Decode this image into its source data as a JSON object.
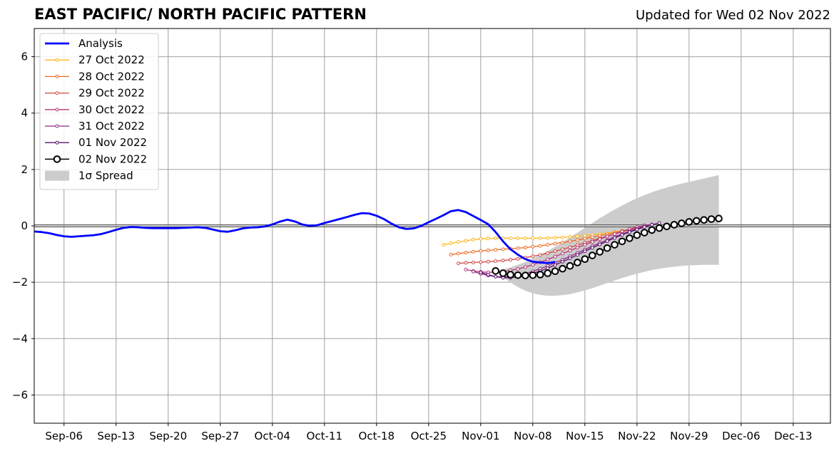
{
  "chart_data": {
    "type": "line",
    "title": "EAST PACIFIC/ NORTH PACIFIC PATTERN",
    "subtitle": "Updated for Wed 02 Nov 2022",
    "xlabel": "",
    "ylabel": "",
    "xlim": [
      "2022-09-02",
      "2022-12-18"
    ],
    "ylim": [
      -7,
      7
    ],
    "yticks": [
      -6,
      -4,
      -2,
      0,
      2,
      4,
      6
    ],
    "ytick_labels": [
      "−6",
      "−4",
      "−2",
      "0",
      "2",
      "4",
      "6"
    ],
    "xticks": [
      "2022-09-06",
      "2022-09-13",
      "2022-09-20",
      "2022-09-27",
      "2022-10-04",
      "2022-10-11",
      "2022-10-18",
      "2022-10-25",
      "2022-11-01",
      "2022-11-08",
      "2022-11-15",
      "2022-11-22",
      "2022-11-29",
      "2022-12-06",
      "2022-12-13"
    ],
    "xtick_labels": [
      "Sep-06",
      "Sep-13",
      "Sep-20",
      "Sep-27",
      "Oct-04",
      "Oct-11",
      "Oct-18",
      "Oct-25",
      "Nov-01",
      "Nov-08",
      "Nov-15",
      "Nov-22",
      "Nov-29",
      "Dec-06",
      "Dec-13"
    ],
    "grid": true,
    "legend_position": "top-left",
    "colors": {
      "analysis": "#0000ff",
      "oct27": "#fbb61a",
      "oct28": "#ed6925",
      "oct29": "#d44842",
      "oct30": "#b73779",
      "oct31": "#8c2981",
      "nov01": "#5c126e",
      "nov02": "#000000",
      "spread": "#cccccc"
    },
    "analysis": {
      "name": "Analysis",
      "start": "2022-09-02",
      "values": [
        -0.2,
        -0.22,
        -0.26,
        -0.32,
        -0.37,
        -0.39,
        -0.37,
        -0.35,
        -0.33,
        -0.29,
        -0.22,
        -0.14,
        -0.07,
        -0.04,
        -0.05,
        -0.07,
        -0.08,
        -0.08,
        -0.08,
        -0.08,
        -0.07,
        -0.06,
        -0.05,
        -0.07,
        -0.13,
        -0.19,
        -0.21,
        -0.16,
        -0.09,
        -0.06,
        -0.05,
        -0.02,
        0.05,
        0.15,
        0.22,
        0.16,
        0.05,
        0.0,
        0.02,
        0.1,
        0.17,
        0.24,
        0.31,
        0.39,
        0.45,
        0.44,
        0.36,
        0.24,
        0.08,
        -0.05,
        -0.11,
        -0.09,
        0.0,
        0.13,
        0.25,
        0.38,
        0.52,
        0.56,
        0.49,
        0.35,
        0.21,
        0.06,
        -0.22,
        -0.55,
        -0.83,
        -1.02,
        -1.18,
        -1.27,
        -1.3,
        -1.32,
        -1.28
      ]
    },
    "forecasts": [
      {
        "name": "27 Oct 2022",
        "start": "2022-10-27",
        "values": [
          -0.67,
          -0.62,
          -0.57,
          -0.53,
          -0.49,
          -0.46,
          -0.45,
          -0.44,
          -0.44,
          -0.44,
          -0.44,
          -0.44,
          -0.44,
          -0.44,
          -0.43,
          -0.42,
          -0.41,
          -0.39,
          -0.37,
          -0.35,
          -0.32,
          -0.29,
          -0.26,
          -0.22,
          -0.17
        ]
      },
      {
        "name": "28 Oct 2022",
        "start": "2022-10-28",
        "values": [
          -1.02,
          -0.98,
          -0.95,
          -0.92,
          -0.89,
          -0.87,
          -0.85,
          -0.83,
          -0.81,
          -0.79,
          -0.77,
          -0.74,
          -0.71,
          -0.67,
          -0.63,
          -0.59,
          -0.55,
          -0.5,
          -0.45,
          -0.4,
          -0.35,
          -0.3,
          -0.24,
          -0.18,
          -0.12
        ]
      },
      {
        "name": "29 Oct 2022",
        "start": "2022-10-29",
        "values": [
          -1.33,
          -1.31,
          -1.3,
          -1.29,
          -1.27,
          -1.25,
          -1.23,
          -1.2,
          -1.17,
          -1.13,
          -1.08,
          -1.03,
          -0.97,
          -0.9,
          -0.83,
          -0.76,
          -0.68,
          -0.6,
          -0.52,
          -0.44,
          -0.37,
          -0.29,
          -0.21,
          -0.14,
          -0.07
        ]
      },
      {
        "name": "30 Oct 2022",
        "start": "2022-10-30",
        "values": [
          -1.55,
          -1.6,
          -1.63,
          -1.65,
          -1.64,
          -1.62,
          -1.58,
          -1.53,
          -1.46,
          -1.38,
          -1.29,
          -1.19,
          -1.09,
          -0.98,
          -0.88,
          -0.77,
          -0.67,
          -0.57,
          -0.47,
          -0.38,
          -0.29,
          -0.2,
          -0.12,
          -0.04,
          0.02
        ]
      },
      {
        "name": "31 Oct 2022",
        "start": "2022-10-31",
        "values": [
          -1.62,
          -1.7,
          -1.76,
          -1.8,
          -1.81,
          -1.79,
          -1.75,
          -1.69,
          -1.61,
          -1.52,
          -1.42,
          -1.31,
          -1.2,
          -1.08,
          -0.96,
          -0.84,
          -0.72,
          -0.61,
          -0.5,
          -0.39,
          -0.29,
          -0.19,
          -0.1,
          -0.02,
          0.05
        ]
      },
      {
        "name": "01 Nov 2022",
        "start": "2022-11-01",
        "values": [
          -1.65,
          -1.73,
          -1.8,
          -1.84,
          -1.84,
          -1.81,
          -1.76,
          -1.69,
          -1.6,
          -1.5,
          -1.39,
          -1.27,
          -1.15,
          -1.03,
          -0.9,
          -0.78,
          -0.66,
          -0.54,
          -0.43,
          -0.32,
          -0.22,
          -0.13,
          -0.04,
          0.04,
          0.1
        ]
      }
    ],
    "latest": {
      "name": "02 Nov 2022",
      "start": "2022-11-03",
      "values": [
        -1.6,
        -1.68,
        -1.73,
        -1.75,
        -1.76,
        -1.75,
        -1.73,
        -1.68,
        -1.61,
        -1.52,
        -1.42,
        -1.3,
        -1.18,
        -1.05,
        -0.92,
        -0.79,
        -0.67,
        -0.55,
        -0.44,
        -0.33,
        -0.24,
        -0.15,
        -0.08,
        -0.02,
        0.04,
        0.09,
        0.14,
        0.18,
        0.21,
        0.24,
        0.26
      ]
    },
    "spread": {
      "name": "1σ Spread",
      "start": "2022-11-03",
      "upper": [
        -1.6,
        -1.54,
        -1.47,
        -1.38,
        -1.28,
        -1.16,
        -1.03,
        -0.89,
        -0.74,
        -0.58,
        -0.41,
        -0.24,
        -0.07,
        0.1,
        0.27,
        0.43,
        0.58,
        0.72,
        0.86,
        0.98,
        1.09,
        1.19,
        1.28,
        1.36,
        1.43,
        1.5,
        1.56,
        1.62,
        1.68,
        1.74,
        1.8
      ],
      "lower": [
        -1.6,
        -1.82,
        -2.01,
        -2.17,
        -2.3,
        -2.39,
        -2.45,
        -2.48,
        -2.48,
        -2.46,
        -2.42,
        -2.36,
        -2.29,
        -2.21,
        -2.12,
        -2.03,
        -1.94,
        -1.85,
        -1.77,
        -1.7,
        -1.63,
        -1.57,
        -1.52,
        -1.48,
        -1.45,
        -1.42,
        -1.4,
        -1.39,
        -1.38,
        -1.38,
        -1.38
      ]
    }
  }
}
